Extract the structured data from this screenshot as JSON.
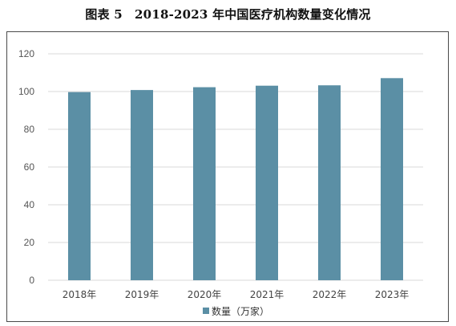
{
  "figure": {
    "title": "图表 5　2018-2023 年中国医疗机构数量变化情况"
  },
  "colors": {
    "bar": "#5b8fa5",
    "grid": "#d9d9d9",
    "frame": "#4a4a4a"
  },
  "chart_data": {
    "type": "bar",
    "title": "",
    "categories": [
      "2018年",
      "2019年",
      "2020年",
      "2021年",
      "2022年",
      "2023年"
    ],
    "series": [
      {
        "name": "数量（万家）",
        "values": [
          99.7,
          100.8,
          102.3,
          103.1,
          103.3,
          107.1
        ]
      }
    ],
    "xlabel": "",
    "ylabel": "",
    "ylim": [
      0,
      120
    ],
    "yticks": [
      0,
      20,
      40,
      60,
      80,
      100,
      120
    ],
    "grid": true,
    "legend": "bottom-center"
  }
}
